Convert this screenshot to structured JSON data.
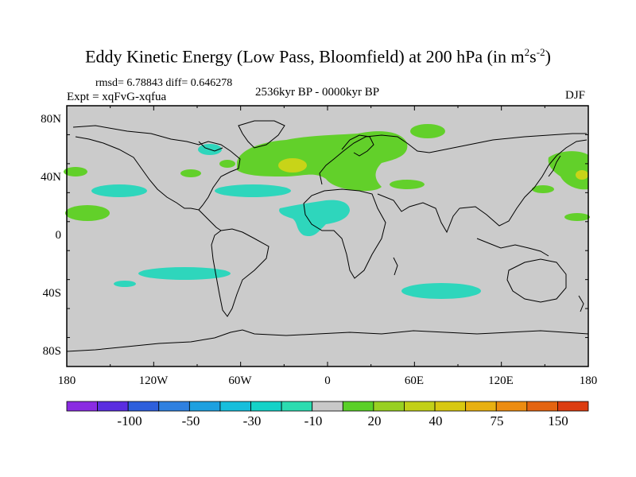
{
  "title": {
    "main": "Eddy Kinetic Energy (Low Pass, Bloomfield) at 200 hPa (in m",
    "sup1": "2",
    "mid": "s",
    "sup2": "-2",
    "end": ")"
  },
  "stats": "rmsd= 6.78843 diff= 0.646278",
  "expt": "Expt = xqFvG-xqfua",
  "period": "2536kyr BP - 0000kyr BP",
  "season": "DJF",
  "map": {
    "lat_ticks": [
      "80N",
      "40N",
      "0",
      "40S",
      "80S"
    ],
    "lon_ticks": [
      "180",
      "120W",
      "60W",
      "0",
      "60E",
      "120E",
      "180"
    ]
  },
  "colorbar": {
    "labels": [
      "-100",
      "-50",
      "-30",
      "-10",
      "20",
      "40",
      "75",
      "150"
    ],
    "colors": [
      "#8a2be2",
      "#5a2ee0",
      "#2e5fdc",
      "#2f80e0",
      "#1ea0e0",
      "#16bedc",
      "#14d2c8",
      "#2cdcb0",
      "#c8c8c8",
      "#5ad028",
      "#98d022",
      "#c2d018",
      "#d8c810",
      "#e8b010",
      "#ec8c10",
      "#e46410",
      "#dc3c10"
    ]
  },
  "chart_data": {
    "type": "heatmap",
    "title": "Eddy Kinetic Energy (Low Pass, Bloomfield) at 200 hPa (in m2s-2)",
    "variable": "Eddy Kinetic Energy difference",
    "units": "m2 s-2",
    "experiment": "xqFvG-xqfua",
    "season": "DJF",
    "rmsd": 6.78843,
    "diff": 0.646278,
    "xlim": [
      -180,
      180
    ],
    "ylim": [
      -90,
      90
    ],
    "contour_levels": [
      -150,
      -100,
      -75,
      -50,
      -40,
      -30,
      -20,
      -10,
      10,
      20,
      30,
      40,
      50,
      75,
      100,
      150
    ],
    "anomalies": [
      {
        "region": "North Atlantic / Europe",
        "sign": "positive",
        "approx_value": 20
      },
      {
        "region": "Central North Atlantic core",
        "sign": "positive",
        "approx_value": 40
      },
      {
        "region": "Western North Pacific",
        "sign": "positive",
        "approx_value": 20
      },
      {
        "region": "Eastern North Pacific",
        "sign": "positive",
        "approx_value": 20
      },
      {
        "region": "Tropical Atlantic / West Africa",
        "sign": "negative",
        "approx_value": -10
      },
      {
        "region": "Subtropical North Atlantic",
        "sign": "negative",
        "approx_value": -10
      },
      {
        "region": "Eastern Pacific subtropics",
        "sign": "negative",
        "approx_value": -10
      },
      {
        "region": "Hudson Bay",
        "sign": "negative",
        "approx_value": -10
      },
      {
        "region": "South Pacific",
        "sign": "negative",
        "approx_value": -10
      },
      {
        "region": "South Indian Ocean",
        "sign": "negative",
        "approx_value": -10
      }
    ]
  }
}
